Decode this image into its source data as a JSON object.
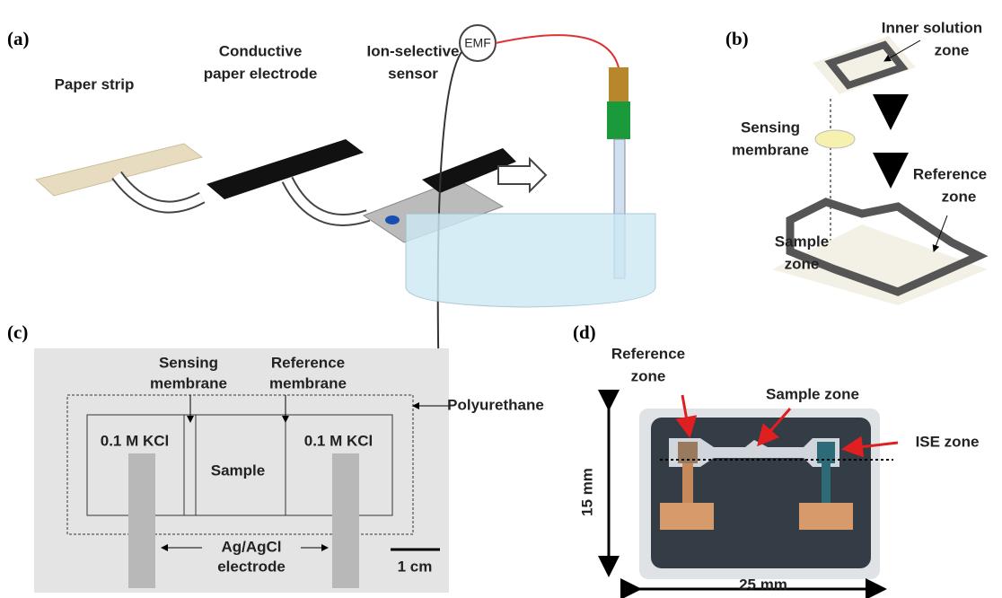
{
  "panels": [
    {
      "label": "(a)",
      "items": [
        {
          "text": [
            "Paper strip"
          ]
        },
        {
          "text": [
            "Conductive",
            "paper electrode"
          ]
        },
        {
          "text": [
            "Ion-selective",
            "sensor"
          ]
        },
        {
          "text": [
            "EMF"
          ]
        }
      ]
    },
    {
      "label": "(b)",
      "items": [
        {
          "text": [
            "Inner solution",
            "zone"
          ]
        },
        {
          "text": [
            "Sensing",
            "membrane"
          ]
        },
        {
          "text": [
            "Reference",
            "zone"
          ]
        },
        {
          "text": [
            "Sample",
            "zone"
          ]
        }
      ]
    },
    {
      "label": "(c)",
      "items": [
        {
          "text": [
            "Sensing",
            "membrane"
          ]
        },
        {
          "text": [
            "Reference",
            "membrane"
          ]
        },
        {
          "text": [
            "Polyurethane"
          ]
        },
        {
          "text": [
            "0.1 M KCl"
          ]
        },
        {
          "text": [
            "0.1 M KCl"
          ]
        },
        {
          "text": [
            "Sample"
          ]
        },
        {
          "text": [
            "Ag/AgCl",
            "electrode"
          ]
        },
        {
          "text": [
            "1 cm"
          ]
        }
      ]
    },
    {
      "label": "(d)",
      "items": [
        {
          "text": [
            "Reference",
            "zone"
          ]
        },
        {
          "text": [
            "Sample zone"
          ]
        },
        {
          "text": [
            "ISE zone"
          ]
        },
        {
          "text": [
            "15 mm"
          ]
        },
        {
          "text": [
            "25 mm"
          ]
        }
      ]
    }
  ]
}
